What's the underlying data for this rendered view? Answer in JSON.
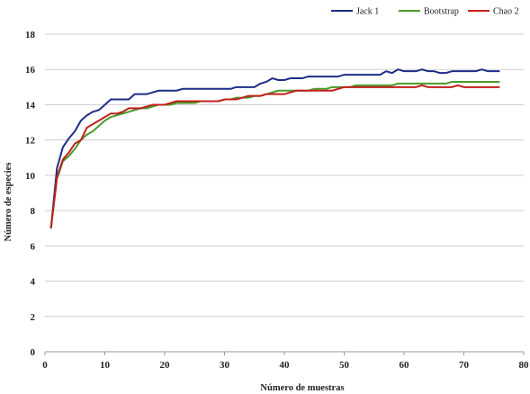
{
  "chart_data": {
    "type": "line",
    "xlabel": "Número de muestras",
    "ylabel": "Número de especies",
    "xlim": [
      0,
      80
    ],
    "ylim": [
      0,
      18
    ],
    "xticks": [
      0,
      10,
      20,
      30,
      40,
      50,
      60,
      70,
      80
    ],
    "yticks": [
      0,
      2,
      4,
      6,
      8,
      10,
      12,
      14,
      16,
      18
    ],
    "grid": "horizontal",
    "legend_position": "top-right",
    "x": [
      1,
      2,
      3,
      4,
      5,
      6,
      7,
      8,
      9,
      10,
      11,
      12,
      13,
      14,
      15,
      16,
      17,
      18,
      19,
      20,
      21,
      22,
      23,
      24,
      25,
      26,
      27,
      28,
      29,
      30,
      31,
      32,
      33,
      34,
      35,
      36,
      37,
      38,
      39,
      40,
      41,
      42,
      43,
      44,
      45,
      46,
      47,
      48,
      49,
      50,
      51,
      52,
      53,
      54,
      55,
      56,
      57,
      58,
      59,
      60,
      61,
      62,
      63,
      64,
      65,
      66,
      67,
      68,
      69,
      70,
      71,
      72,
      73,
      74,
      75,
      76
    ],
    "series": [
      {
        "name": "Jack 1",
        "color": "#1f2d86",
        "values": [
          7.0,
          10.4,
          11.6,
          12.1,
          12.5,
          13.1,
          13.4,
          13.6,
          13.7,
          14.0,
          14.3,
          14.3,
          14.3,
          14.3,
          14.6,
          14.6,
          14.6,
          14.7,
          14.8,
          14.8,
          14.8,
          14.8,
          14.9,
          14.9,
          14.9,
          14.9,
          14.9,
          14.9,
          14.9,
          14.9,
          14.9,
          15.0,
          15.0,
          15.0,
          15.0,
          15.2,
          15.3,
          15.5,
          15.4,
          15.4,
          15.5,
          15.5,
          15.5,
          15.6,
          15.6,
          15.6,
          15.6,
          15.6,
          15.6,
          15.7,
          15.7,
          15.7,
          15.7,
          15.7,
          15.7,
          15.7,
          15.9,
          15.8,
          16.0,
          15.9,
          15.9,
          15.9,
          16.0,
          15.9,
          15.9,
          15.8,
          15.8,
          15.9,
          15.9,
          15.9,
          15.9,
          15.9,
          16.0,
          15.9,
          15.9,
          15.9
        ]
      },
      {
        "name": "Bootstrap",
        "color": "#4a9a2a",
        "values": [
          7.0,
          9.8,
          10.8,
          11.1,
          11.5,
          12.0,
          12.3,
          12.5,
          12.8,
          13.1,
          13.3,
          13.4,
          13.5,
          13.6,
          13.7,
          13.8,
          13.8,
          13.9,
          14.0,
          14.0,
          14.0,
          14.1,
          14.1,
          14.1,
          14.1,
          14.2,
          14.2,
          14.2,
          14.2,
          14.3,
          14.3,
          14.4,
          14.4,
          14.4,
          14.5,
          14.5,
          14.6,
          14.7,
          14.8,
          14.8,
          14.8,
          14.8,
          14.8,
          14.8,
          14.9,
          14.9,
          14.9,
          15.0,
          15.0,
          15.0,
          15.0,
          15.1,
          15.1,
          15.1,
          15.1,
          15.1,
          15.1,
          15.1,
          15.2,
          15.2,
          15.2,
          15.2,
          15.2,
          15.2,
          15.2,
          15.2,
          15.2,
          15.3,
          15.3,
          15.3,
          15.3,
          15.3,
          15.3,
          15.3,
          15.3,
          15.3
        ]
      },
      {
        "name": "Chao 2",
        "color": "#c0201d",
        "values": [
          7.0,
          9.9,
          10.9,
          11.3,
          11.8,
          12.0,
          12.7,
          12.9,
          13.1,
          13.3,
          13.5,
          13.5,
          13.6,
          13.8,
          13.8,
          13.8,
          13.9,
          14.0,
          14.0,
          14.0,
          14.1,
          14.2,
          14.2,
          14.2,
          14.2,
          14.2,
          14.2,
          14.2,
          14.2,
          14.3,
          14.3,
          14.3,
          14.4,
          14.5,
          14.5,
          14.5,
          14.6,
          14.6,
          14.6,
          14.6,
          14.7,
          14.8,
          14.8,
          14.8,
          14.8,
          14.8,
          14.8,
          14.8,
          14.9,
          15.0,
          15.0,
          15.0,
          15.0,
          15.0,
          15.0,
          15.0,
          15.0,
          15.0,
          15.0,
          15.0,
          15.0,
          15.0,
          15.1,
          15.0,
          15.0,
          15.0,
          15.0,
          15.0,
          15.1,
          15.0,
          15.0,
          15.0,
          15.0,
          15.0,
          15.0,
          15.0
        ]
      }
    ]
  }
}
